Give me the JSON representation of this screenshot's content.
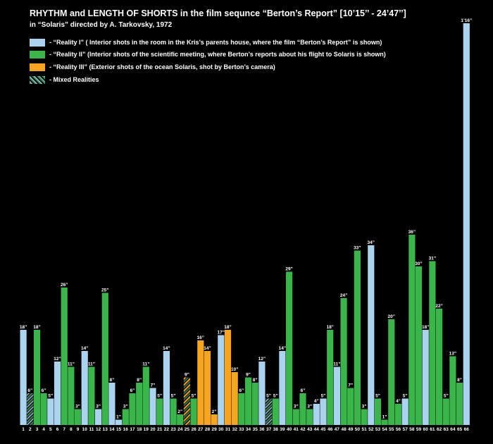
{
  "title": "RHYTHM  and  LENGTH OF SHORTS in the film sequnce “Berton’s Report” [10’15’’ - 24’47’’]",
  "subtitle": "in “Solaris” directed by A. Tarkovsky, 1972",
  "colors": {
    "reality1": "#a9d3ef",
    "reality2": "#39b54a",
    "reality3": "#f7a51e",
    "mixed_stripe_a": "#3a8f5a",
    "mixed_stripe_b": "#a9d3ef",
    "mixed_dark": "#111111",
    "background": "#000000"
  },
  "legend": [
    {
      "key": "reality1",
      "label": "- “Reality I”   ( Interior shots in the room in the Kris’s parents house, where the film “Berton’s Report” is shown)"
    },
    {
      "key": "reality2",
      "label": "- “Reality II”   (Interior shots of the scientific meeting, where Berton’s reports about his flight to Solaris is shown)"
    },
    {
      "key": "reality3",
      "label": "- “Reality III” (Exterior shots of the ocean Solaris, shot by Berton’s camera)"
    },
    {
      "key": "mixed",
      "label": "- Mixed Realities"
    }
  ],
  "chart_data": {
    "type": "bar",
    "xlabel": "",
    "ylabel": "",
    "unit": "seconds",
    "ylim": [
      0,
      76
    ],
    "categories": [
      "1",
      "2",
      "3",
      "4",
      "5",
      "6",
      "7",
      "8",
      "9",
      "10",
      "11",
      "12",
      "13",
      "14",
      "15",
      "16",
      "17",
      "18",
      "19",
      "20",
      "21",
      "22",
      "23",
      "24",
      "25",
      "26",
      "27",
      "28",
      "29",
      "30",
      "31",
      "32",
      "33",
      "34",
      "35",
      "36",
      "37",
      "38",
      "39",
      "40",
      "41",
      "42",
      "43",
      "44",
      "45",
      "46",
      "47",
      "48",
      "49",
      "50",
      "51",
      "52",
      "53",
      "54",
      "55",
      "56",
      "57",
      "58",
      "59",
      "60",
      "61",
      "62",
      "63",
      "64",
      "65",
      "66"
    ],
    "values": [
      18,
      6,
      18,
      6,
      5,
      12,
      26,
      11,
      3,
      14,
      11,
      3,
      25,
      8,
      1,
      3,
      6,
      8,
      11,
      7,
      5,
      14,
      5,
      2,
      9,
      5,
      16,
      14,
      2,
      17,
      18,
      10,
      6,
      9,
      8,
      12,
      5,
      5,
      14,
      29,
      3,
      6,
      3,
      4,
      5,
      18,
      11,
      24,
      7,
      33,
      3,
      34,
      5,
      1,
      20,
      4,
      5,
      36,
      30,
      18,
      31,
      22,
      5,
      13,
      8,
      76
    ],
    "labels": [
      "18”",
      "6”",
      "18”",
      "6”",
      "5”",
      "12”",
      "26”",
      "11”",
      "3”",
      "14”",
      "11”",
      "3”",
      "25”",
      "8”",
      "1”",
      "3”",
      "6”",
      "8”",
      "11”",
      "7”",
      "5”",
      "14”",
      "5”",
      "2”",
      "9”",
      "5”",
      "16”",
      "14”",
      "2”",
      "17”",
      "18”",
      "10”",
      "6”",
      "9”",
      "8”",
      "12”",
      "5”",
      "5”",
      "14”",
      "29”",
      "3”",
      "6”",
      "3”",
      "4”",
      "5”",
      "18”",
      "11”",
      "24”",
      "7”",
      "33”",
      "3”",
      "34”",
      "5”",
      "1”",
      "20”",
      "4”",
      "5”",
      "36”",
      "30”",
      "18”",
      "31”",
      "22”",
      "5”",
      "13”",
      "8”",
      "1’16”"
    ],
    "reality": [
      "r1",
      "mix",
      "r2",
      "r2",
      "r1",
      "r1",
      "r2",
      "r2",
      "r2",
      "r1",
      "r2",
      "r1",
      "r2",
      "r1",
      "r1",
      "r2",
      "r2",
      "r2",
      "r2",
      "r1",
      "r2",
      "r1",
      "r2",
      "r2",
      "mix3",
      "r2",
      "r3",
      "r3",
      "r3",
      "r1",
      "r3",
      "r3",
      "r2",
      "r2",
      "r2",
      "r1",
      "mix",
      "r2",
      "r1",
      "r2",
      "r2",
      "r2",
      "r2",
      "r1",
      "r1",
      "r2",
      "r1",
      "r2",
      "r2",
      "r2",
      "r2",
      "r1",
      "r2",
      "r2",
      "r2",
      "r2",
      "r1",
      "r2",
      "r2",
      "r1",
      "r2",
      "r2",
      "r2",
      "r2",
      "r2",
      "r1"
    ]
  }
}
